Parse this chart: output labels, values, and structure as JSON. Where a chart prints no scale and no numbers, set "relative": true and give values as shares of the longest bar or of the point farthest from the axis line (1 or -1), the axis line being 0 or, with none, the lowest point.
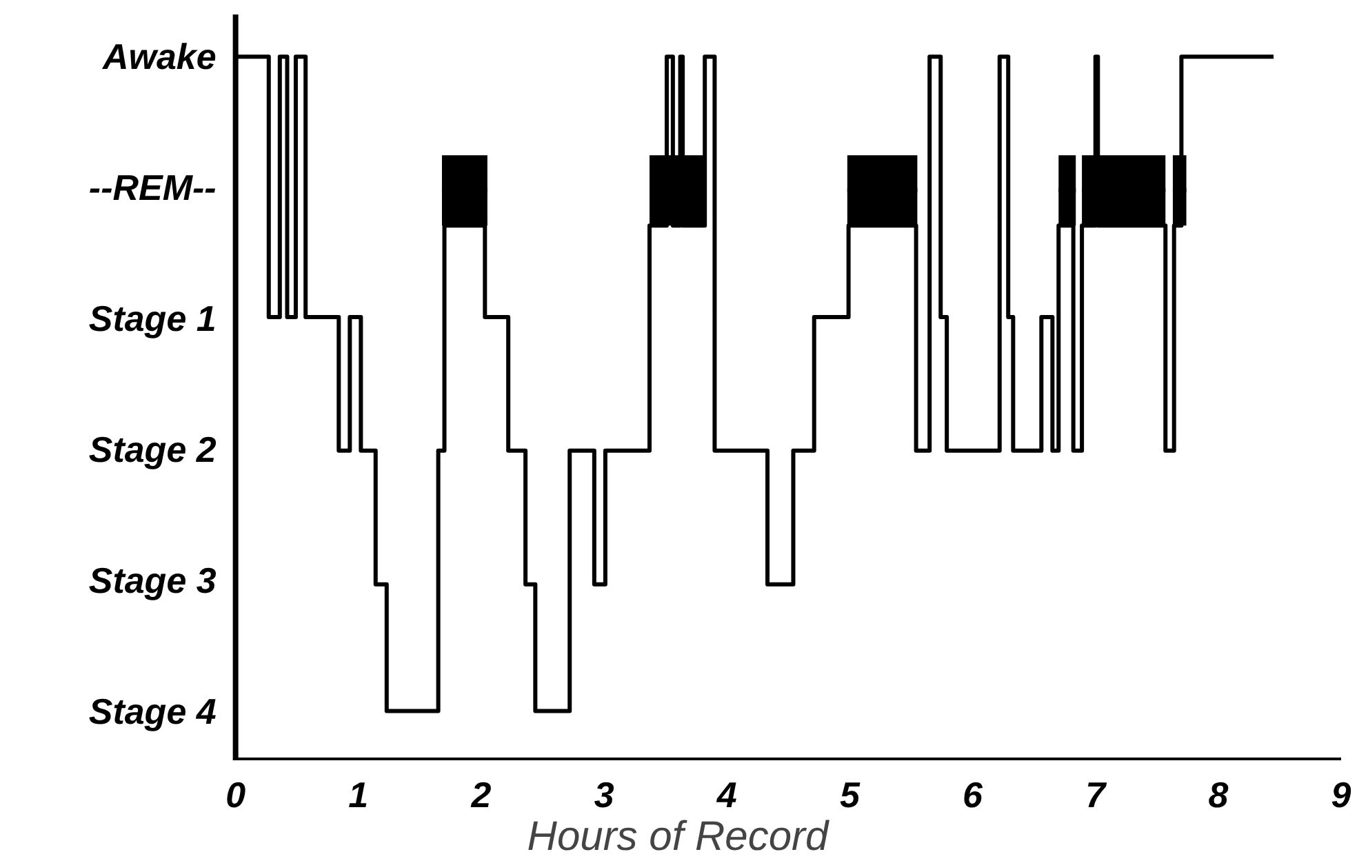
{
  "chart_data": {
    "type": "step",
    "relative": true,
    "xlabel": "Hours of Record",
    "xlim": [
      0,
      9
    ],
    "xticks": [
      0,
      1,
      2,
      3,
      4,
      5,
      6,
      7,
      8,
      9
    ],
    "annotations": [
      "Awake",
      "--REM--",
      "Stage 1",
      "Stage 2",
      "Stage 3",
      "Stage 4"
    ],
    "series": [
      {
        "color": "#000000",
        "x": [
          0,
          0.27,
          0.36,
          0.42,
          0.49,
          0.57,
          0.84,
          0.93,
          1.02,
          1.14,
          1.23,
          1.65,
          1.7,
          2.03,
          2.22,
          2.36,
          2.44,
          2.72,
          2.92,
          3.01,
          3.37,
          3.51,
          3.56,
          3.62,
          3.64,
          3.82,
          3.9,
          4.33,
          4.54,
          4.71,
          4.99,
          5.54,
          5.65,
          5.74,
          5.79,
          6.22,
          6.29,
          6.33,
          6.56,
          6.65,
          6.7,
          6.82,
          6.89,
          7.0,
          7.02,
          7.57,
          7.64,
          7.7,
          8.45
        ],
        "values": [
          1,
          0.63,
          1,
          0.63,
          1,
          0.63,
          0.44,
          0.63,
          0.44,
          0.25,
          0.07,
          0.44,
          0.76,
          0.63,
          0.44,
          0.25,
          0.07,
          0.44,
          0.25,
          0.44,
          0.76,
          1,
          0.76,
          1,
          0.76,
          1,
          0.44,
          0.25,
          0.44,
          0.63,
          0.76,
          0.44,
          1,
          0.63,
          0.44,
          1,
          0.63,
          0.44,
          0.63,
          0.44,
          0.76,
          0.44,
          0.76,
          1,
          0.76,
          0.44,
          0.76,
          1,
          1
        ]
      },
      {
        "type": "line",
        "color": "#000000",
        "x": [
          1.68,
          2.05,
          2.5,
          3.37,
          3.83,
          4.4,
          4.98,
          5.55,
          6.1,
          6.7,
          6.84,
          6.86,
          6.89,
          7.57,
          7.6,
          7.63,
          7.74
        ],
        "values": [
          0.81,
          0.81,
          null,
          0.81,
          0.81,
          null,
          0.81,
          0.81,
          null,
          0.81,
          0.81,
          null,
          0.81,
          0.81,
          null,
          0.81,
          0.81
        ],
        "lower": [
          0.76,
          0.76,
          null,
          0.76,
          0.76,
          null,
          0.76,
          0.76,
          null,
          0.76,
          0.76,
          null,
          0.76,
          0.76,
          null,
          0.76,
          0.76
        ],
        "upper": [
          0.86,
          0.86,
          null,
          0.86,
          0.86,
          null,
          0.86,
          0.86,
          null,
          0.86,
          0.86,
          null,
          0.86,
          0.86,
          null,
          0.86,
          0.86
        ]
      }
    ]
  }
}
